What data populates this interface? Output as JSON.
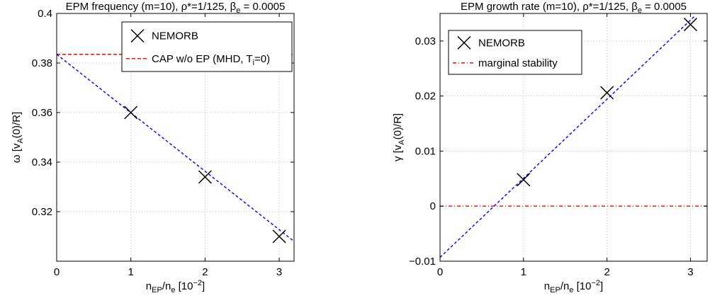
{
  "chart_data": [
    {
      "type": "scatter",
      "title": "EPM frequency (m=10), ρ*=1/125, β",
      "title_sub": "e",
      "title_tail": " = 0.0005",
      "ylabel": "ω [v",
      "ylabel_sub": "A",
      "ylabel_tail": "(0)/R]",
      "xlabel": "n",
      "xlabel_sub1": "EP",
      "xlabel_mid": "/n",
      "xlabel_sub2": "e",
      "xlabel_tail": " [10",
      "xlabel_sup": "−2",
      "xlabel_end": "]",
      "xlim": [
        0,
        3.2
      ],
      "ylim": [
        0.3,
        0.4
      ],
      "xticks": [
        0,
        1,
        2,
        3
      ],
      "yticks": [
        0.32,
        0.34,
        0.36,
        0.38,
        0.4
      ],
      "ytick_labels": [
        "0.32",
        "0.34",
        "0.36",
        "0.38",
        "0.4"
      ],
      "grid": true,
      "legend": "top-right",
      "series": [
        {
          "name": "NEMORB",
          "marker": "x",
          "color": "#000000",
          "x": [
            1,
            2,
            3
          ],
          "y": [
            0.36,
            0.334,
            0.31
          ]
        }
      ],
      "fit_line": {
        "x": [
          0,
          3.2
        ],
        "y": [
          0.3835,
          0.308
        ],
        "color": "#0000ff"
      },
      "hline": {
        "name": "CAP w/o EP (MHD, T",
        "name_sub": "i",
        "name_tail": "=0)",
        "y": 0.3835,
        "color": "#ff0000"
      }
    },
    {
      "type": "scatter",
      "title": "EPM growth rate (m=10), ρ*=1/125, β",
      "title_sub": "e",
      "title_tail": " = 0.0005",
      "ylabel": "γ [v",
      "ylabel_sub": "A",
      "ylabel_tail": "(0)/R]",
      "xlabel": "n",
      "xlabel_sub1": "EP",
      "xlabel_mid": "/n",
      "xlabel_sub2": "e",
      "xlabel_tail": " [10",
      "xlabel_sup": "−2",
      "xlabel_end": "]",
      "xlim": [
        0,
        3.2
      ],
      "ylim": [
        -0.01,
        0.035
      ],
      "xticks": [
        0,
        1,
        2,
        3
      ],
      "yticks": [
        -0.01,
        0,
        0.01,
        0.02,
        0.03
      ],
      "ytick_labels": [
        "−0.01",
        "0",
        "0.01",
        "0.02",
        "0.03"
      ],
      "grid": true,
      "legend": "top-left",
      "series": [
        {
          "name": "NEMORB",
          "marker": "x",
          "color": "#000000",
          "x": [
            1,
            2,
            3
          ],
          "y": [
            0.0048,
            0.0206,
            0.033
          ]
        }
      ],
      "fit_line": {
        "x": [
          0,
          3.05
        ],
        "y": [
          -0.0093,
          0.0345
        ],
        "color": "#0000ff"
      },
      "hline": {
        "name": "marginal stability",
        "y": 0,
        "color": "#ff0000"
      }
    }
  ]
}
